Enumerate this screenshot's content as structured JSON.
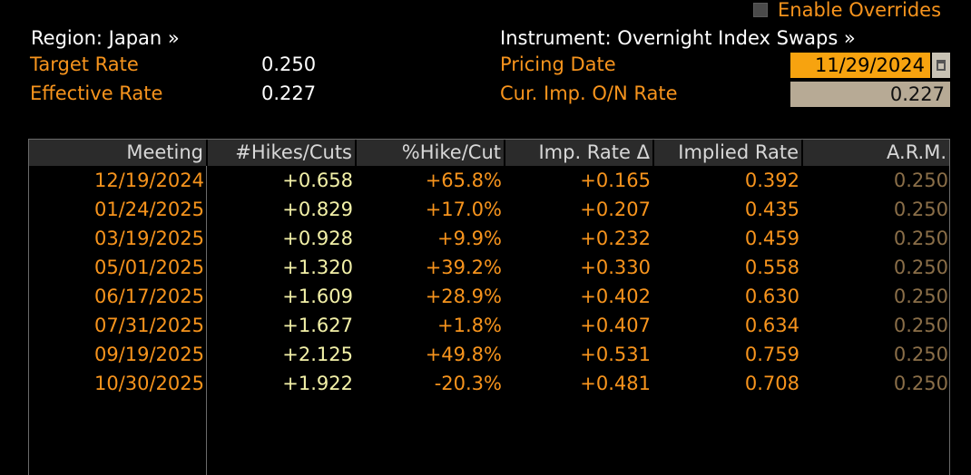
{
  "overrides": {
    "label": "Enable Overrides",
    "checked": false
  },
  "header": {
    "region_label": "Region: Japan »",
    "target_rate_label": "Target Rate",
    "target_rate_value": "0.250",
    "effective_rate_label": "Effective Rate",
    "effective_rate_value": "0.227",
    "instrument_label": "Instrument: Overnight Index Swaps »",
    "pricing_date_label": "Pricing Date",
    "pricing_date_value": "11/29/2024",
    "cur_imp_label": "Cur. Imp. O/N Rate",
    "cur_imp_value": "0.227"
  },
  "table": {
    "columns": [
      "Meeting",
      "#Hikes/Cuts",
      "%Hike/Cut",
      "Imp. Rate Δ",
      "Implied Rate",
      "A.R.M."
    ],
    "rows": [
      [
        "12/19/2024",
        "+0.658",
        "+65.8%",
        "+0.165",
        "0.392",
        "0.250"
      ],
      [
        "01/24/2025",
        "+0.829",
        "+17.0%",
        "+0.207",
        "0.435",
        "0.250"
      ],
      [
        "03/19/2025",
        "+0.928",
        "+9.9%",
        "+0.232",
        "0.459",
        "0.250"
      ],
      [
        "05/01/2025",
        "+1.320",
        "+39.2%",
        "+0.330",
        "0.558",
        "0.250"
      ],
      [
        "06/17/2025",
        "+1.609",
        "+28.9%",
        "+0.402",
        "0.630",
        "0.250"
      ],
      [
        "07/31/2025",
        "+1.627",
        "+1.8%",
        "+0.407",
        "0.634",
        "0.250"
      ],
      [
        "09/19/2025",
        "+2.125",
        "+49.8%",
        "+0.531",
        "0.759",
        "0.250"
      ],
      [
        "10/30/2025",
        "+1.922",
        "-20.3%",
        "+0.481",
        "0.708",
        "0.250"
      ]
    ]
  },
  "colors": {
    "accent_orange": "#f7941d",
    "hike_text": "#f3f1a8",
    "arm_text": "#8a6e48",
    "pricing_date_bg": "#f7a30f",
    "imp_rate_bg": "#b7aa95"
  },
  "icons": {
    "calendar": "calendar-icon",
    "checkbox": "checkbox-icon"
  }
}
